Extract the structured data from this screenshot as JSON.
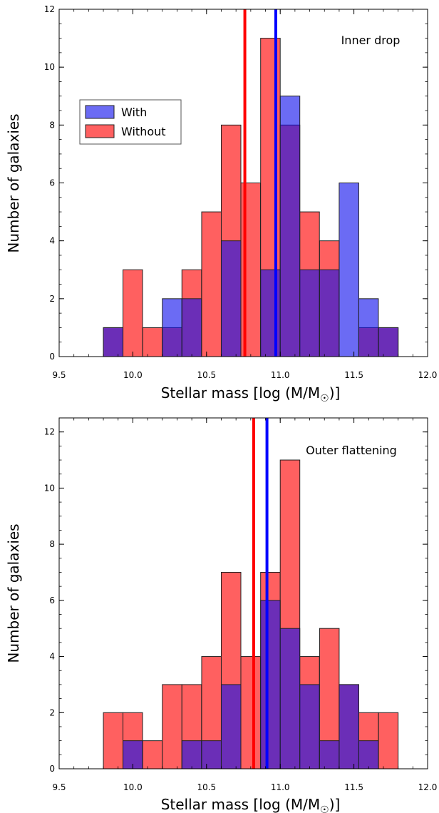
{
  "chart_data": [
    {
      "type": "bar",
      "annotation": "Inner drop",
      "xlabel": "Stellar mass [log (M/M",
      "xlabel_sub": "☉",
      "xlabel_end": ")]",
      "ylabel": "Number of galaxies",
      "xlim": [
        9.5,
        12.0
      ],
      "ylim": [
        0,
        12
      ],
      "xticks": [
        9.5,
        10.0,
        10.5,
        11.0,
        11.5,
        12.0
      ],
      "yticks": [
        0,
        2,
        4,
        6,
        8,
        10,
        12
      ],
      "bin_edges": [
        9.8,
        9.933,
        10.067,
        10.2,
        10.333,
        10.467,
        10.6,
        10.733,
        10.867,
        11.0,
        11.133,
        11.267,
        11.4,
        11.533,
        11.667
      ],
      "legend": {
        "position": "upper-left",
        "entries": [
          "With",
          "Without"
        ]
      },
      "series": [
        {
          "name": "With",
          "color": "#0000ff",
          "values": [
            1,
            0,
            0,
            2,
            2,
            0,
            4,
            0,
            3,
            9,
            3,
            3,
            6,
            2,
            1
          ]
        },
        {
          "name": "Without",
          "color": "#ff0000",
          "values": [
            1,
            3,
            1,
            1,
            3,
            5,
            8,
            6,
            11,
            8,
            5,
            4,
            0,
            1,
            1
          ]
        }
      ],
      "vlines": [
        {
          "series": "Without",
          "x": 10.76,
          "color": "#ff0000"
        },
        {
          "series": "With",
          "x": 10.97,
          "color": "#0000ff"
        }
      ]
    },
    {
      "type": "bar",
      "annotation": "Outer flattening",
      "xlabel": "Stellar mass [log (M/M",
      "xlabel_sub": "☉",
      "xlabel_end": ")]",
      "ylabel": "Number of galaxies",
      "xlim": [
        9.5,
        12.0
      ],
      "ylim": [
        0,
        12.5
      ],
      "xticks": [
        9.5,
        10.0,
        10.5,
        11.0,
        11.5,
        12.0
      ],
      "yticks": [
        0,
        2,
        4,
        6,
        8,
        10,
        12
      ],
      "bin_edges": [
        9.8,
        9.933,
        10.067,
        10.2,
        10.333,
        10.467,
        10.6,
        10.733,
        10.867,
        11.0,
        11.133,
        11.267,
        11.4,
        11.533,
        11.667
      ],
      "legend": null,
      "series": [
        {
          "name": "With",
          "color": "#0000ff",
          "values": [
            0,
            1,
            0,
            0,
            1,
            1,
            3,
            0,
            6,
            5,
            3,
            1,
            3,
            1,
            0
          ]
        },
        {
          "name": "Without",
          "color": "#ff0000",
          "values": [
            2,
            2,
            1,
            3,
            3,
            4,
            7,
            4,
            7,
            11,
            4,
            5,
            3,
            2,
            2
          ]
        }
      ],
      "vlines": [
        {
          "series": "Without",
          "x": 10.82,
          "color": "#ff0000"
        },
        {
          "series": "With",
          "x": 10.91,
          "color": "#0000ff"
        }
      ]
    }
  ]
}
